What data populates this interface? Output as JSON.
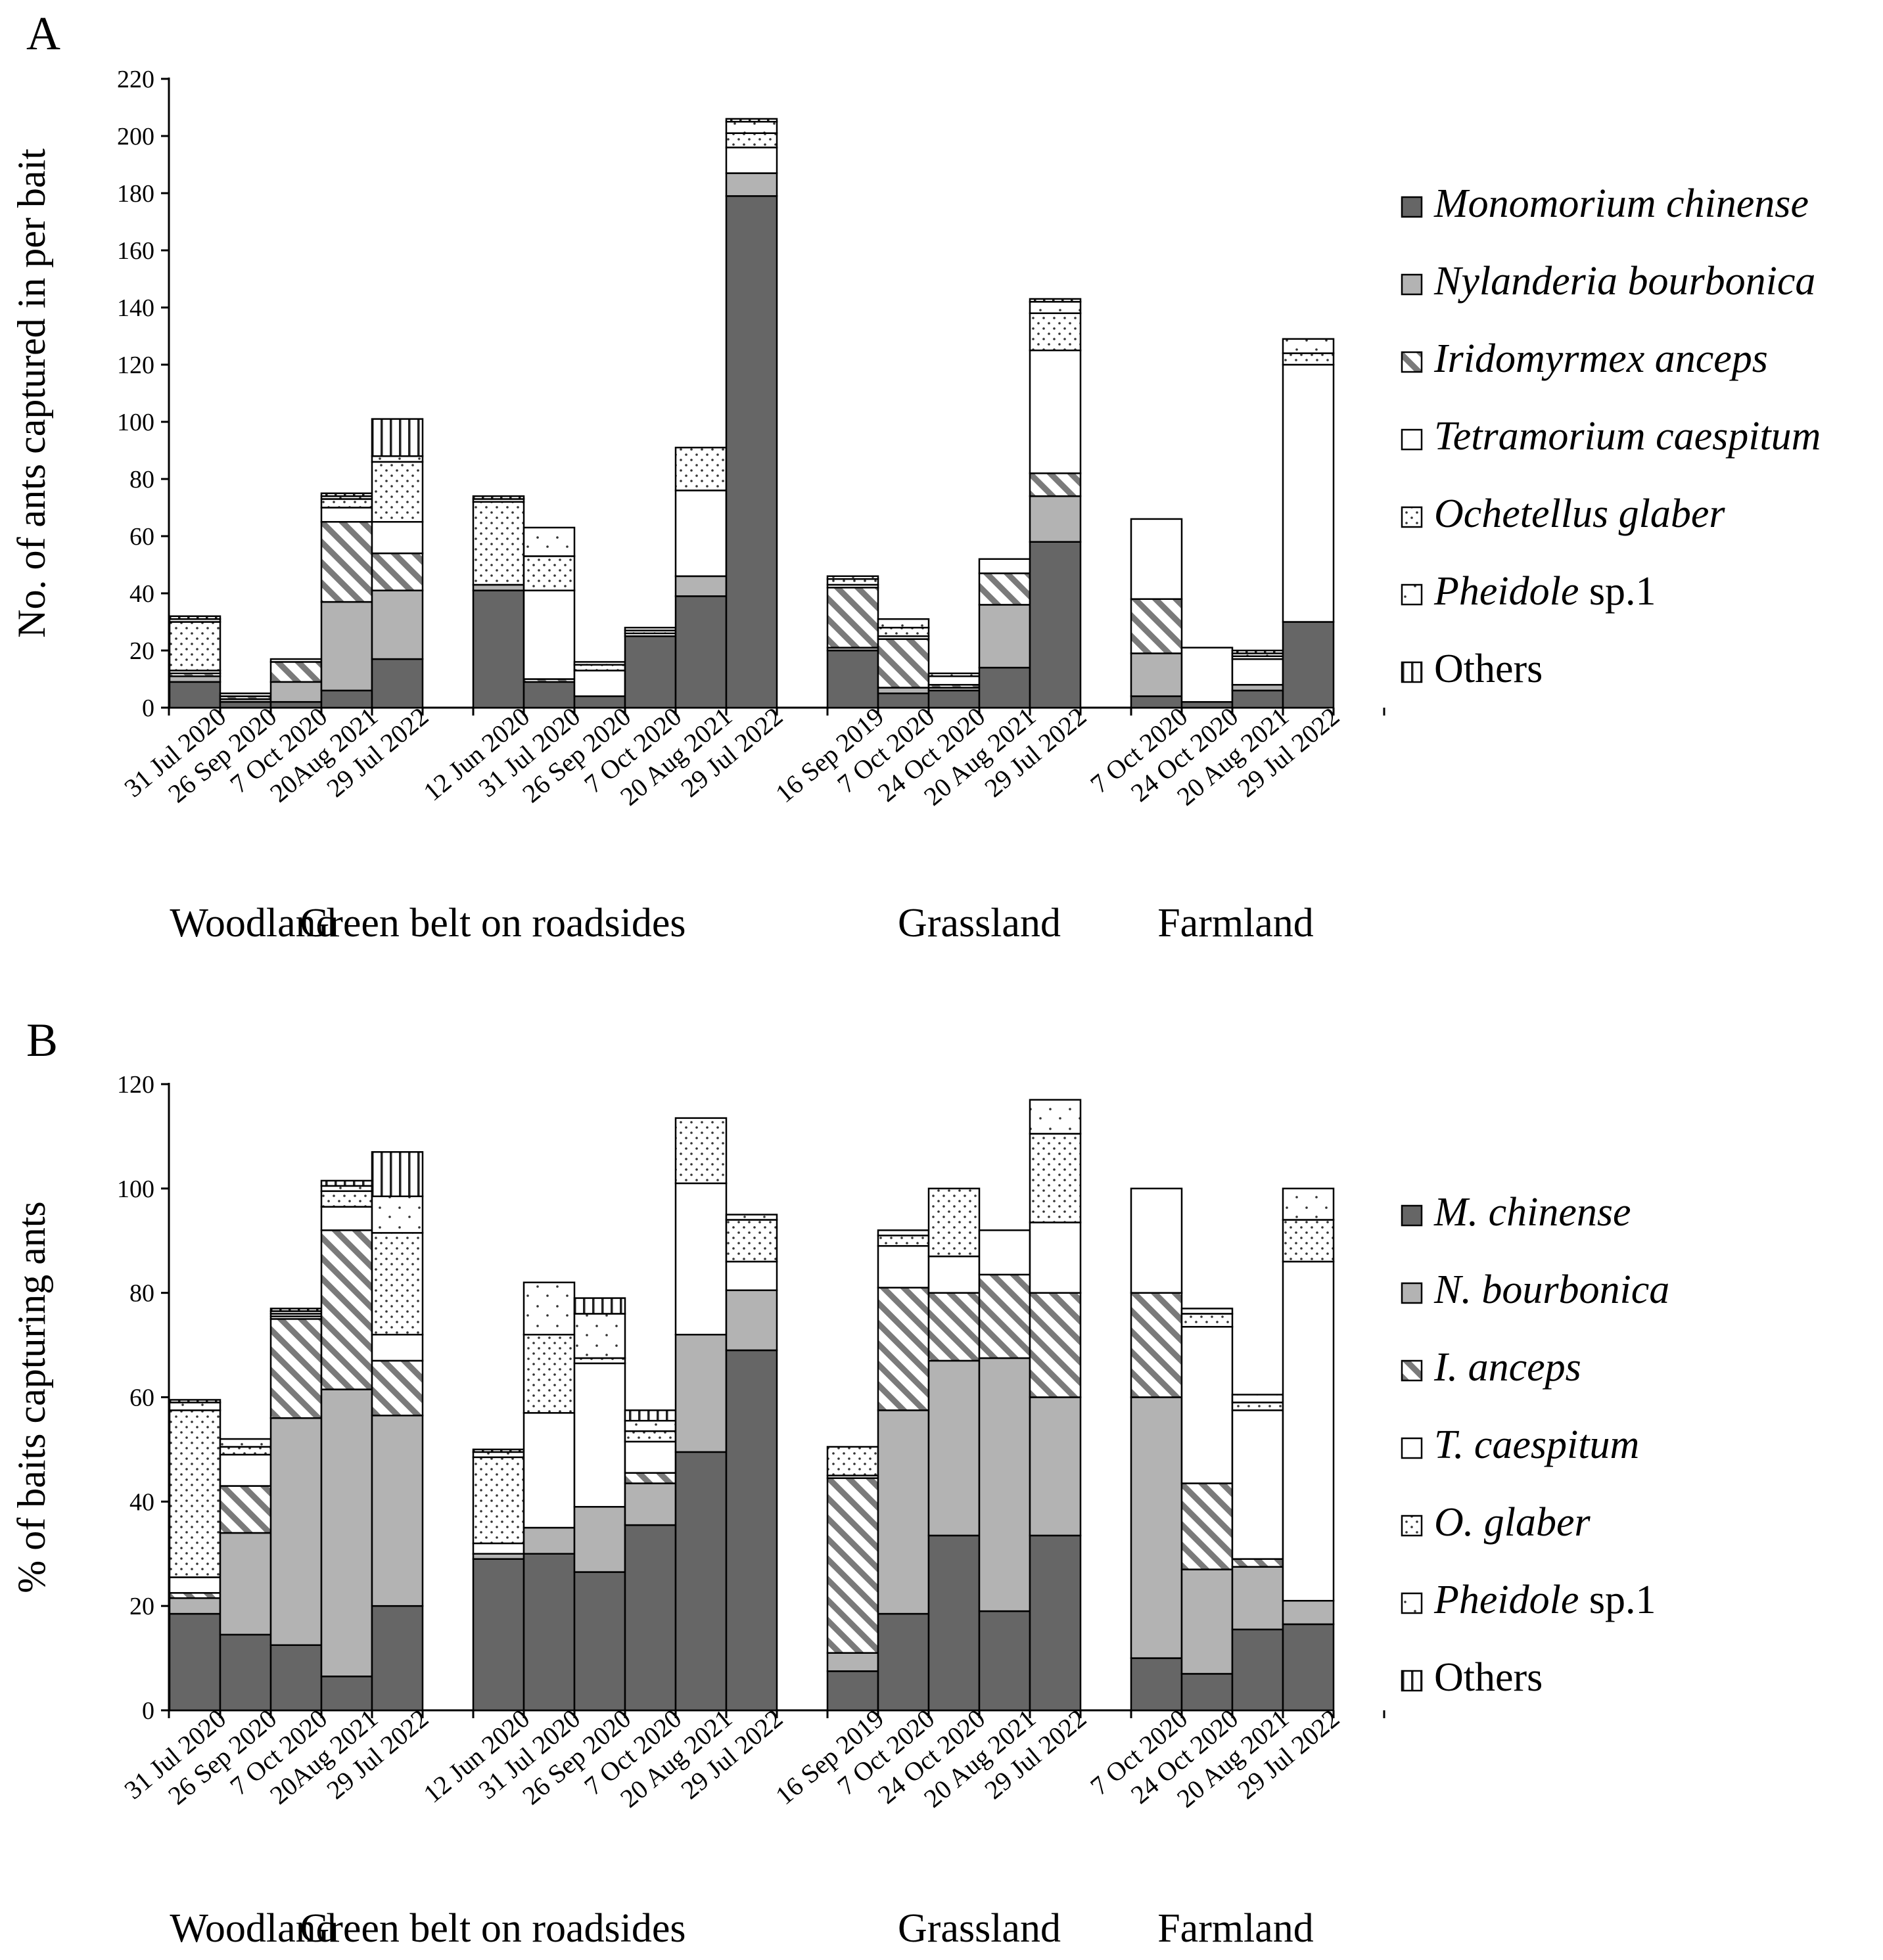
{
  "series_styles": [
    {
      "key": "mc",
      "fill": "#666666",
      "pattern": "solid"
    },
    {
      "key": "nb",
      "fill": "#b3b3b3",
      "pattern": "solid"
    },
    {
      "key": "ia",
      "fill": "#ffffff",
      "pattern": "diagonal-hatch"
    },
    {
      "key": "tc",
      "fill": "#ffffff",
      "pattern": "plain"
    },
    {
      "key": "og",
      "fill": "#ffffff",
      "pattern": "dots"
    },
    {
      "key": "ph",
      "fill": "#ffffff",
      "pattern": "sparse-dots"
    },
    {
      "key": "ot",
      "fill": "#ffffff",
      "pattern": "vertical-lines"
    }
  ],
  "chart_data": [
    {
      "panel": "A",
      "type": "bar",
      "stacked": true,
      "ylabel": "No. of ants captured in per bait",
      "ylim": [
        0,
        220
      ],
      "yticks": [
        "0",
        "20",
        "40",
        "60",
        "80",
        "100",
        "120",
        "140",
        "160",
        "180",
        "200",
        "220"
      ],
      "legend": [
        {
          "italic": "Monomorium  chinense",
          "plain": ""
        },
        {
          "italic": "Nylanderia bourbonica",
          "plain": ""
        },
        {
          "italic": "Iridomyrmex anceps",
          "plain": ""
        },
        {
          "italic": "Tetramorium caespitum",
          "plain": ""
        },
        {
          "italic": "Ochetellus glaber",
          "plain": ""
        },
        {
          "italic": "Pheidole",
          "plain": " sp.1"
        },
        {
          "italic": "",
          "plain": "Others"
        }
      ],
      "groups": [
        {
          "name": "Woodland",
          "bars": [
            {
              "label": "31 Jul 2020",
              "values": [
                9,
                2,
                1,
                1,
                17,
                1,
                1
              ]
            },
            {
              "label": "26 Sep 2020",
              "values": [
                2,
                1,
                1,
                1,
                0,
                0,
                0
              ]
            },
            {
              "label": "7 Oct 2020",
              "values": [
                2,
                7,
                7,
                1,
                0,
                0,
                0
              ]
            },
            {
              "label": "20Aug 2021",
              "values": [
                6,
                31,
                28,
                5,
                3,
                1,
                1
              ]
            },
            {
              "label": "29 Jul 2022",
              "values": [
                17,
                24,
                13,
                11,
                21,
                2,
                13
              ]
            }
          ]
        },
        {
          "name": "Green belt  on roadsides",
          "bars": [
            {
              "label": "12 Jun 2020",
              "values": [
                41,
                2,
                0,
                0,
                29,
                1,
                1
              ]
            },
            {
              "label": "31 Jul 2020",
              "values": [
                9,
                0,
                1,
                31,
                12,
                10,
                0
              ]
            },
            {
              "label": "26 Sep 2020",
              "values": [
                4,
                0,
                0,
                9,
                2,
                1,
                0
              ]
            },
            {
              "label": "7 Oct 2020",
              "values": [
                25,
                0,
                0,
                1,
                1,
                1,
                0
              ]
            },
            {
              "label": "20 Aug 2021",
              "values": [
                39,
                7,
                0,
                30,
                15,
                0,
                0
              ]
            },
            {
              "label": "29 Jul 2022",
              "values": [
                179,
                8,
                0,
                9,
                5,
                4,
                1
              ]
            }
          ]
        },
        {
          "name": "Grassland",
          "bars": [
            {
              "label": "16 Sep 2019",
              "values": [
                20,
                1,
                21,
                1,
                2,
                1,
                0
              ]
            },
            {
              "label": "7 Oct 2020",
              "values": [
                5,
                2,
                17,
                1,
                3,
                3,
                0
              ]
            },
            {
              "label": "24 Oct 2020",
              "values": [
                6,
                1,
                1,
                3,
                0,
                1,
                0
              ]
            },
            {
              "label": "20 Aug 2021",
              "values": [
                14,
                22,
                11,
                5,
                0,
                0,
                0
              ]
            },
            {
              "label": "29 Jul 2022",
              "values": [
                58,
                16,
                8,
                43,
                13,
                4,
                1
              ]
            }
          ]
        },
        {
          "name": "Farmland",
          "bars": [
            {
              "label": "7 Oct 2020",
              "values": [
                4,
                15,
                19,
                28,
                0,
                0,
                0
              ]
            },
            {
              "label": "24 Oct 2020",
              "values": [
                2,
                0,
                0,
                19,
                0,
                0,
                0
              ]
            },
            {
              "label": "20 Aug 2021",
              "values": [
                6,
                2,
                0,
                9,
                1,
                1,
                1
              ]
            },
            {
              "label": "29 Jul 2022",
              "values": [
                30,
                0,
                0,
                90,
                4,
                5,
                0
              ]
            }
          ]
        }
      ]
    },
    {
      "panel": "B",
      "type": "bar",
      "stacked": true,
      "ylabel": "% of baits capturing ants",
      "ylim": [
        0,
        120
      ],
      "yticks": [
        "0",
        "20",
        "40",
        "60",
        "80",
        "100",
        "120"
      ],
      "legend": [
        {
          "italic": "M.  chinense",
          "plain": ""
        },
        {
          "italic": "N. bourbonica",
          "plain": ""
        },
        {
          "italic": "I. anceps",
          "plain": ""
        },
        {
          "italic": "T. caespitum",
          "plain": ""
        },
        {
          "italic": "O. glaber",
          "plain": ""
        },
        {
          "italic": "Pheidole",
          "plain": " sp.1"
        },
        {
          "italic": "",
          "plain": "Others"
        }
      ],
      "groups": [
        {
          "name": "Woodland",
          "bars": [
            {
              "label": "31 Jul 2020",
              "values": [
                18.5,
                3,
                1,
                3,
                32,
                1.5,
                0.5
              ]
            },
            {
              "label": "26 Sep 2020",
              "values": [
                14.5,
                19.5,
                9,
                6,
                1.5,
                1.5,
                0
              ]
            },
            {
              "label": "7 Oct 2020",
              "values": [
                12.5,
                43.5,
                19,
                0.5,
                0.5,
                0.5,
                0.5
              ]
            },
            {
              "label": "20Aug 2021",
              "values": [
                6.5,
                55,
                30.5,
                4.5,
                3,
                1,
                1
              ]
            },
            {
              "label": "29 Jul 2022",
              "values": [
                20,
                36.5,
                10.5,
                5,
                19.5,
                7,
                8.5
              ]
            }
          ]
        },
        {
          "name": "Green belt  on roadsides",
          "bars": [
            {
              "label": "12 Jun 2020",
              "values": [
                29,
                1,
                0,
                2,
                16.5,
                1,
                0.5
              ]
            },
            {
              "label": "31 Jul 2020",
              "values": [
                30,
                5,
                0,
                22,
                15,
                10,
                0
              ]
            },
            {
              "label": "26 Sep 2020",
              "values": [
                26.5,
                12.5,
                0,
                27.5,
                1,
                8.5,
                3
              ]
            },
            {
              "label": "7 Oct 2020",
              "values": [
                35.5,
                8,
                2,
                6,
                2,
                2,
                2
              ]
            },
            {
              "label": "20 Aug 2021",
              "values": [
                49.5,
                22.5,
                0,
                29,
                12.5,
                0,
                0
              ]
            },
            {
              "label": "29 Jul 2022",
              "values": [
                69,
                11.5,
                0,
                5.5,
                8,
                1,
                0
              ]
            }
          ]
        },
        {
          "name": "Grassland",
          "bars": [
            {
              "label": "16 Sep 2019",
              "values": [
                7.5,
                3.5,
                33.5,
                0.5,
                5.5,
                0,
                0
              ]
            },
            {
              "label": "7 Oct 2020",
              "values": [
                18.5,
                39,
                23.5,
                8,
                2,
                1,
                0
              ]
            },
            {
              "label": "24 Oct 2020",
              "values": [
                33.5,
                33.5,
                13,
                7,
                13,
                0,
                0
              ]
            },
            {
              "label": "20 Aug 2021",
              "values": [
                19,
                48.5,
                16,
                8.5,
                0,
                0,
                0
              ]
            },
            {
              "label": "29 Jul 2022",
              "values": [
                33.5,
                26.5,
                20,
                13.5,
                17,
                6.5,
                0
              ]
            }
          ]
        },
        {
          "name": "Farmland",
          "bars": [
            {
              "label": "7 Oct 2020",
              "values": [
                10,
                50,
                20,
                20,
                0,
                0,
                0
              ]
            },
            {
              "label": "24 Oct 2020",
              "values": [
                7,
                20,
                16.5,
                30,
                2.5,
                1,
                0
              ]
            },
            {
              "label": "20 Aug 2021",
              "values": [
                15.5,
                12,
                1.5,
                28.5,
                1.5,
                1.5,
                0
              ]
            },
            {
              "label": "29 Jul 2022",
              "values": [
                16.5,
                4.5,
                0,
                65,
                8,
                6,
                0
              ]
            }
          ]
        }
      ]
    }
  ]
}
